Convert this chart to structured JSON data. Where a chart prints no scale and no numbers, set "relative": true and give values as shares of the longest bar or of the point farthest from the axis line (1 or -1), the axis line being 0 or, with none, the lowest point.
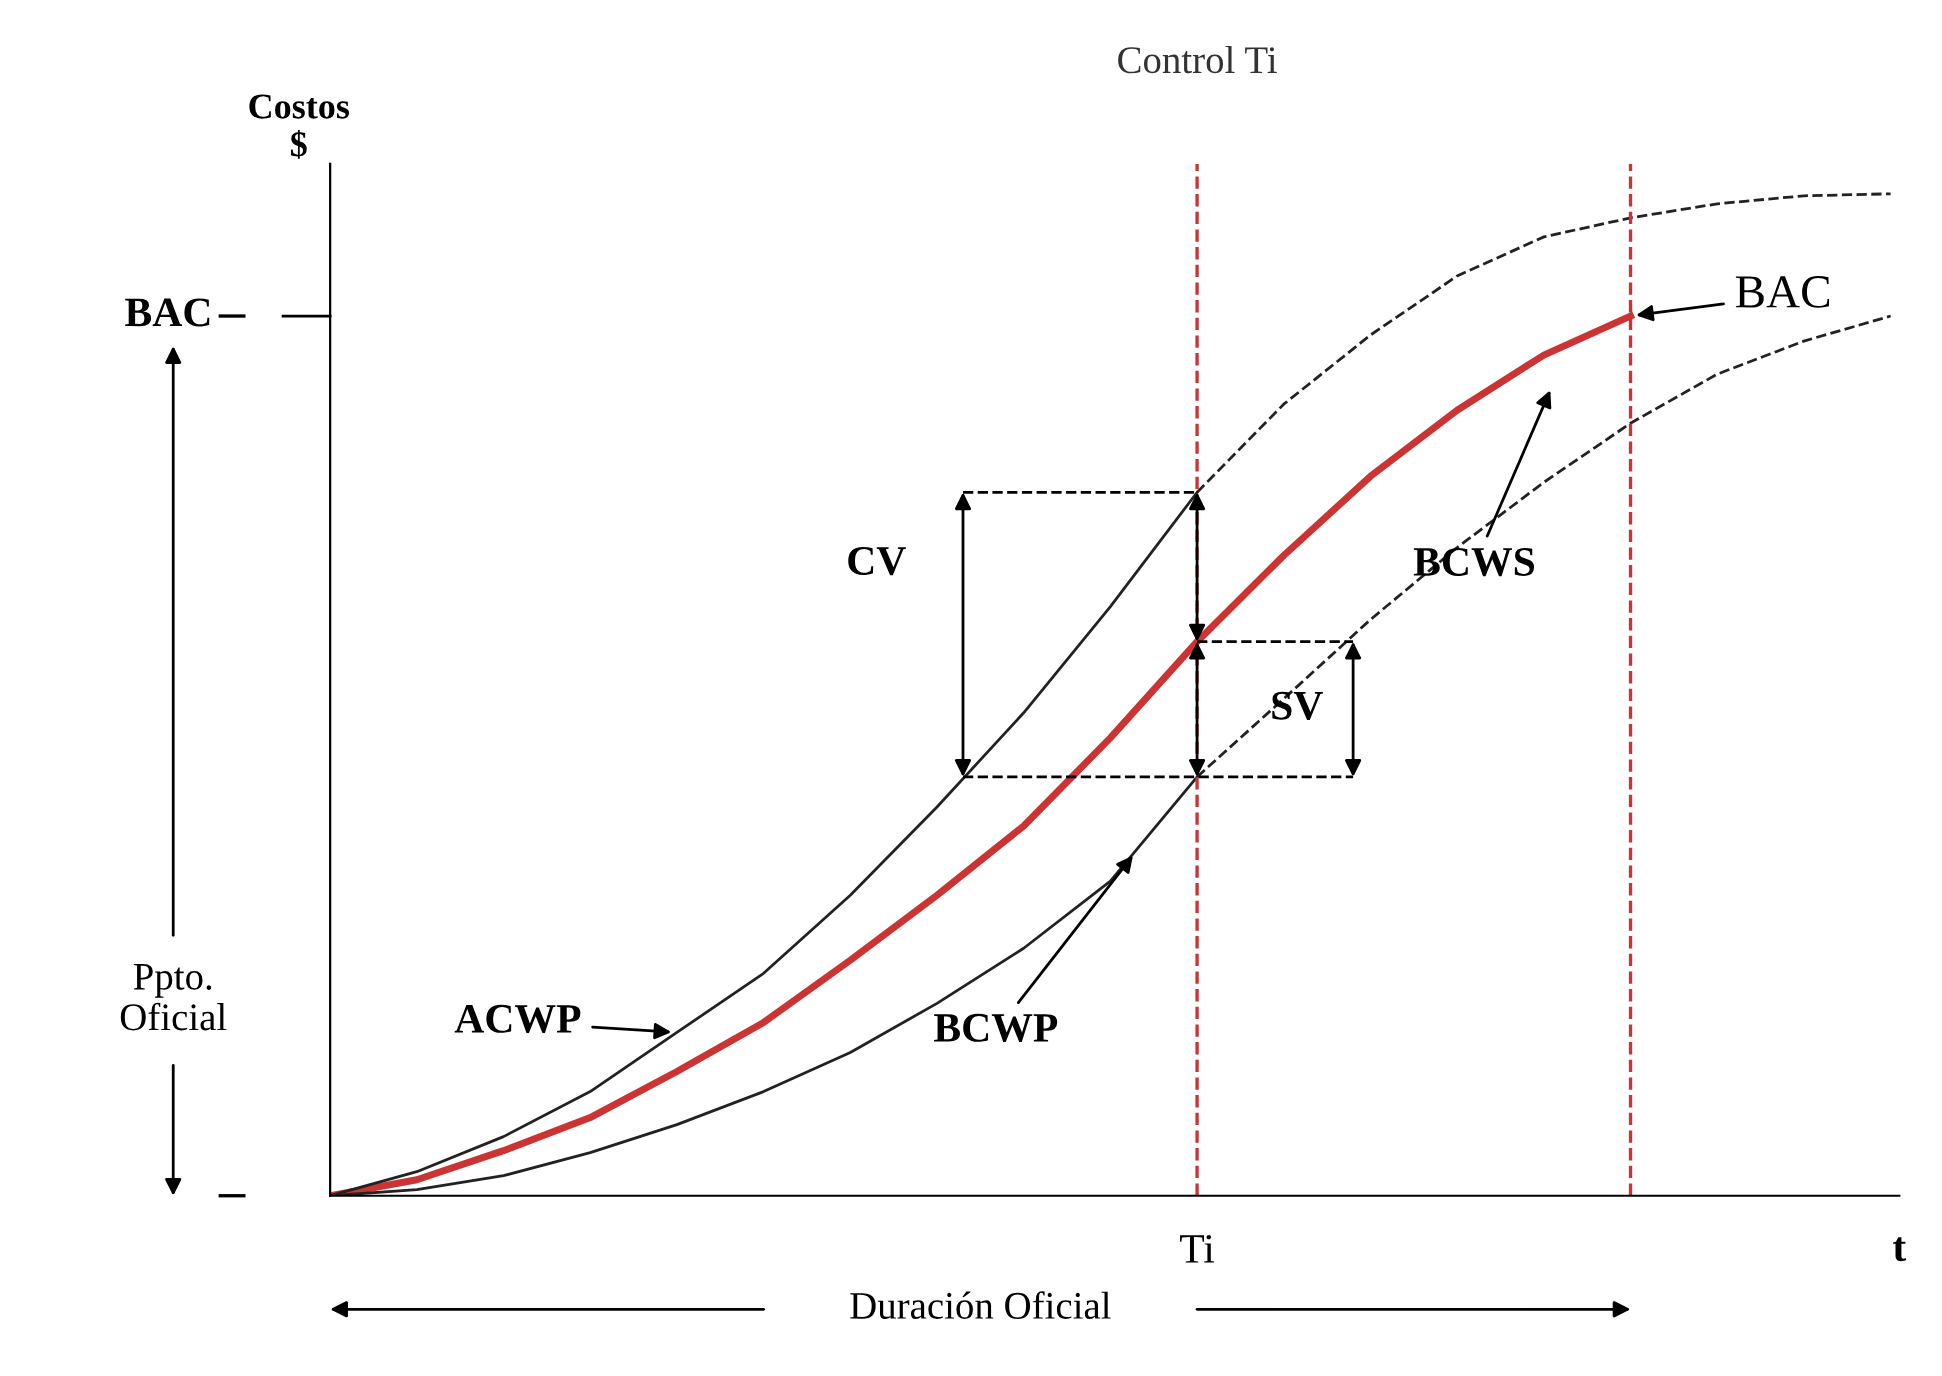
{
  "chart_data": {
    "type": "line",
    "relative": true,
    "ylabel": "Costos\n$",
    "xlabel": "t",
    "categories": [
      null,
      null,
      null,
      null,
      null,
      null,
      null,
      null,
      null,
      null,
      null,
      null,
      null,
      null,
      null,
      null,
      null,
      null,
      null
    ],
    "series": [
      {
        "color": "#cc3333",
        "line_style": "solid",
        "values": [
          0,
          0.016,
          0.045,
          0.078,
          0.124,
          0.173,
          0.235,
          0.3,
          0.369,
          0.457,
          0.553,
          0.639,
          0.718,
          0.784,
          0.839,
          0.878,
          null,
          null,
          null
        ]
      },
      {
        "color": "#222222",
        "line_style": "solid",
        "values": [
          0,
          0.024,
          0.059,
          0.104,
          0.163,
          0.222,
          0.3,
          0.388,
          0.482,
          0.588,
          0.702,
          null,
          null,
          null,
          null,
          null,
          null,
          null,
          null
        ]
      },
      {
        "color": "#222222",
        "line_style": "dashed",
        "values": [
          null,
          null,
          null,
          null,
          null,
          null,
          null,
          null,
          null,
          null,
          0.702,
          0.79,
          0.859,
          0.918,
          0.957,
          0.976,
          0.99,
          0.998,
          1.0
        ]
      },
      {
        "color": "#222222",
        "line_style": "solid",
        "values": [
          0,
          0.006,
          0.02,
          0.043,
          0.071,
          0.104,
          0.143,
          0.192,
          0.247,
          0.314,
          0.418,
          null,
          null,
          null,
          null,
          null,
          null,
          null,
          null
        ]
      },
      {
        "color": "#222222",
        "line_style": "dashed",
        "values": [
          null,
          null,
          null,
          null,
          null,
          null,
          null,
          null,
          null,
          null,
          0.418,
          0.496,
          0.575,
          0.647,
          0.712,
          0.771,
          0.82,
          0.853,
          0.878
        ]
      }
    ],
    "ref_lines": [
      {
        "axis": "x",
        "value": null,
        "label": "Control Ti",
        "color": "#cc3333",
        "line_style": "dashed"
      },
      {
        "axis": "x",
        "value": null,
        "label": null,
        "color": "#cc3333",
        "line_style": "dashed"
      }
    ],
    "annotations": [
      "ACWP",
      "BCWP",
      "BCWS",
      "BAC",
      "BAC",
      "CV",
      "SV",
      "Ppto. Oficial",
      "Duración Oficial",
      "Ti"
    ],
    "legend": false
  }
}
